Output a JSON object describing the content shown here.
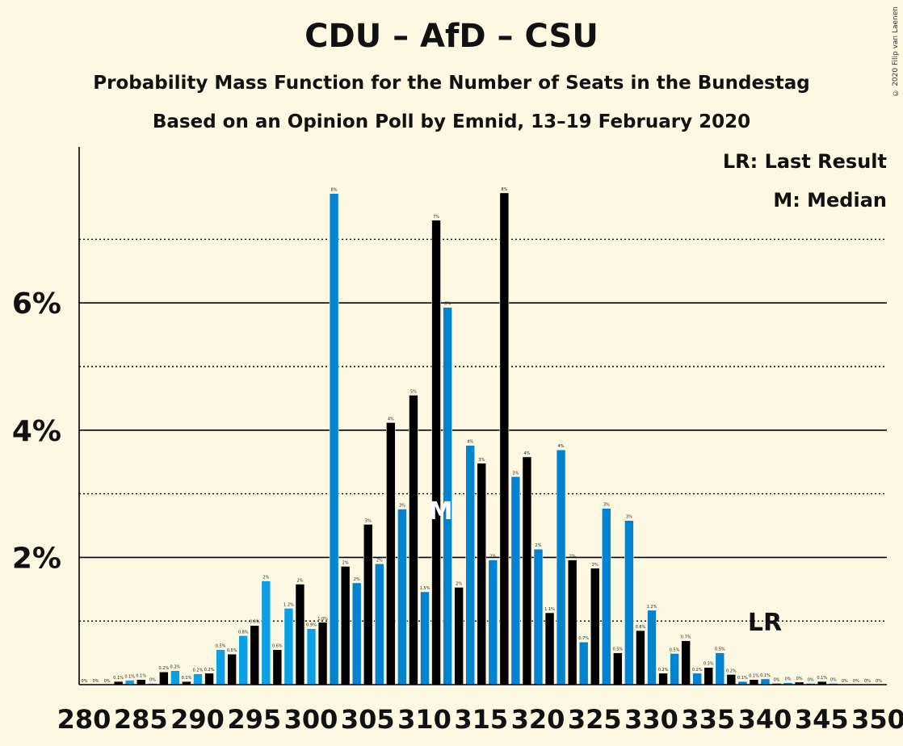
{
  "chart_data": {
    "type": "bar",
    "title": "CDU – AfD – CSU",
    "subtitle": "Probability Mass Function for the Number of Seats in the Bundestag",
    "subtitle2": "Based on an Opinion Poll by Emnid, 13–19 February 2020",
    "copyright": "© 2020 Filip van Laenen",
    "legend": [
      "LR: Last Result",
      "M: Median"
    ],
    "y_ticks": [
      "2%",
      "4%",
      "6%"
    ],
    "x_ticks": [
      280,
      285,
      290,
      295,
      300,
      305,
      310,
      315,
      320,
      325,
      330,
      335,
      340,
      345,
      350
    ],
    "xlim": [
      280,
      350
    ],
    "ylim": [
      0,
      8
    ],
    "grid": true,
    "median_seat": 312,
    "median_label": "M",
    "last_result_seat": 340,
    "last_result_label": "LR",
    "x": [
      280,
      281,
      282,
      283,
      284,
      285,
      286,
      287,
      288,
      289,
      290,
      291,
      292,
      293,
      294,
      295,
      296,
      297,
      298,
      299,
      300,
      301,
      302,
      303,
      304,
      305,
      306,
      307,
      308,
      309,
      310,
      311,
      312,
      313,
      314,
      315,
      316,
      317,
      318,
      319,
      320,
      321,
      322,
      323,
      324,
      325,
      326,
      327,
      328,
      329,
      330,
      331,
      332,
      333,
      334,
      335,
      336,
      337,
      338,
      339,
      340,
      341,
      342,
      343,
      344,
      345,
      346,
      347,
      348,
      349,
      350
    ],
    "values": [
      0,
      0,
      0,
      0.05,
      0.07,
      0.08,
      0.02,
      0.2,
      0.22,
      0.05,
      0.17,
      0.18,
      0.55,
      0.48,
      0.77,
      0.93,
      1.63,
      0.55,
      1.2,
      1.58,
      0.88,
      0.98,
      7.72,
      1.86,
      1.6,
      2.52,
      1.9,
      4.12,
      2.76,
      4.55,
      1.46,
      7.3,
      5.93,
      1.53,
      3.76,
      3.48,
      1.96,
      7.73,
      3.27,
      3.58,
      2.13,
      1.13,
      3.69,
      1.96,
      0.67,
      1.83,
      2.77,
      0.5,
      2.58,
      0.85,
      1.17,
      0.18,
      0.49,
      0.69,
      0.18,
      0.27,
      0.5,
      0.16,
      0.05,
      0.08,
      0.09,
      0.02,
      0.03,
      0.04,
      0.02,
      0.05,
      0.02,
      0,
      0,
      0,
      0
    ],
    "labels": [
      "0%",
      "0%",
      "0%",
      "0.1%",
      "0.1%",
      "0.1%",
      "0%",
      "0.2%",
      "0.2%",
      "0.1%",
      "0.2%",
      "0.2%",
      "0.5%",
      "0.5%",
      "0.8%",
      "0.9%",
      "2%",
      "0.6%",
      "1.2%",
      "2%",
      "0.9%",
      "1.0%",
      "8%",
      "2%",
      "2%",
      "3%",
      "2%",
      "4%",
      "3%",
      "5%",
      "1.5%",
      "7%",
      "6%",
      "2%",
      "4%",
      "3%",
      "2%",
      "8%",
      "3%",
      "4%",
      "2%",
      "1.1%",
      "4%",
      "2%",
      "0.7%",
      "2%",
      "3%",
      "0.5%",
      "3%",
      "0.8%",
      "1.2%",
      "0.2%",
      "0.5%",
      "0.7%",
      "0.2%",
      "0.3%",
      "0.5%",
      "0.2%",
      "0.1%",
      "0.1%",
      "0.1%",
      "0%",
      "0%",
      "0%",
      "0%",
      "0.1%",
      "0%",
      "0%",
      "0%",
      "0%",
      "0%"
    ],
    "colors": {
      "blue": "#0084d1",
      "light_blue": "#0aa0e6",
      "black": "#000000",
      "background": "#fdf8e2"
    }
  }
}
